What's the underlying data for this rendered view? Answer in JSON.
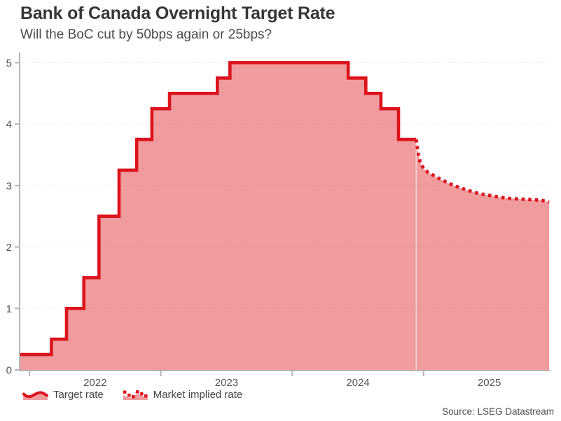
{
  "chart_data": {
    "type": "area",
    "title": "Bank of Canada Overnight Target Rate",
    "subtitle": "Will the BoC cut by 50bps again or 25bps?",
    "source": "Source: LSEG Datastream",
    "xlim": [
      2021.925,
      2025.955
    ],
    "ylim": [
      0,
      5.165
    ],
    "ylabel": "",
    "xlabel": "",
    "yticks": [
      0,
      1,
      2,
      3,
      4,
      5
    ],
    "xticks": {
      "boundaries": [
        2022,
        2023,
        2024,
        2025
      ],
      "labels": [
        "2022",
        "2023",
        "2024",
        "2025"
      ]
    },
    "grid": "horizontal-dotted",
    "legend_position": "bottom-left",
    "colors": {
      "line": "#dc131b",
      "fill_alpha": 0.42,
      "grid": "#e2e2e2",
      "axis": "#b4b4b4",
      "seam": "rgba(255,255,255,0.55)"
    },
    "series": [
      {
        "name": "Target rate",
        "style": "step-solid",
        "points": [
          [
            2021.925,
            0.25
          ],
          [
            2022.167,
            0.5
          ],
          [
            2022.282,
            1.0
          ],
          [
            2022.414,
            1.5
          ],
          [
            2022.529,
            2.5
          ],
          [
            2022.682,
            3.25
          ],
          [
            2022.816,
            3.75
          ],
          [
            2022.932,
            4.25
          ],
          [
            2023.066,
            4.5
          ],
          [
            2023.43,
            4.75
          ],
          [
            2023.526,
            5.0
          ],
          [
            2024.426,
            4.75
          ],
          [
            2024.56,
            4.5
          ],
          [
            2024.675,
            4.25
          ],
          [
            2024.809,
            3.75
          ],
          [
            2024.944,
            3.75
          ]
        ]
      },
      {
        "name": "Market implied rate",
        "style": "dotted-line",
        "points": [
          [
            2024.944,
            3.75
          ],
          [
            2024.952,
            3.62
          ],
          [
            2024.962,
            3.48
          ],
          [
            2024.975,
            3.37
          ],
          [
            2025.0,
            3.28
          ],
          [
            2025.03,
            3.22
          ],
          [
            2025.08,
            3.16
          ],
          [
            2025.14,
            3.09
          ],
          [
            2025.2,
            3.03
          ],
          [
            2025.27,
            2.97
          ],
          [
            2025.34,
            2.92
          ],
          [
            2025.42,
            2.87
          ],
          [
            2025.5,
            2.84
          ],
          [
            2025.58,
            2.81
          ],
          [
            2025.66,
            2.79
          ],
          [
            2025.74,
            2.78
          ],
          [
            2025.83,
            2.77
          ],
          [
            2025.9,
            2.76
          ],
          [
            2025.955,
            2.73
          ]
        ]
      }
    ]
  }
}
